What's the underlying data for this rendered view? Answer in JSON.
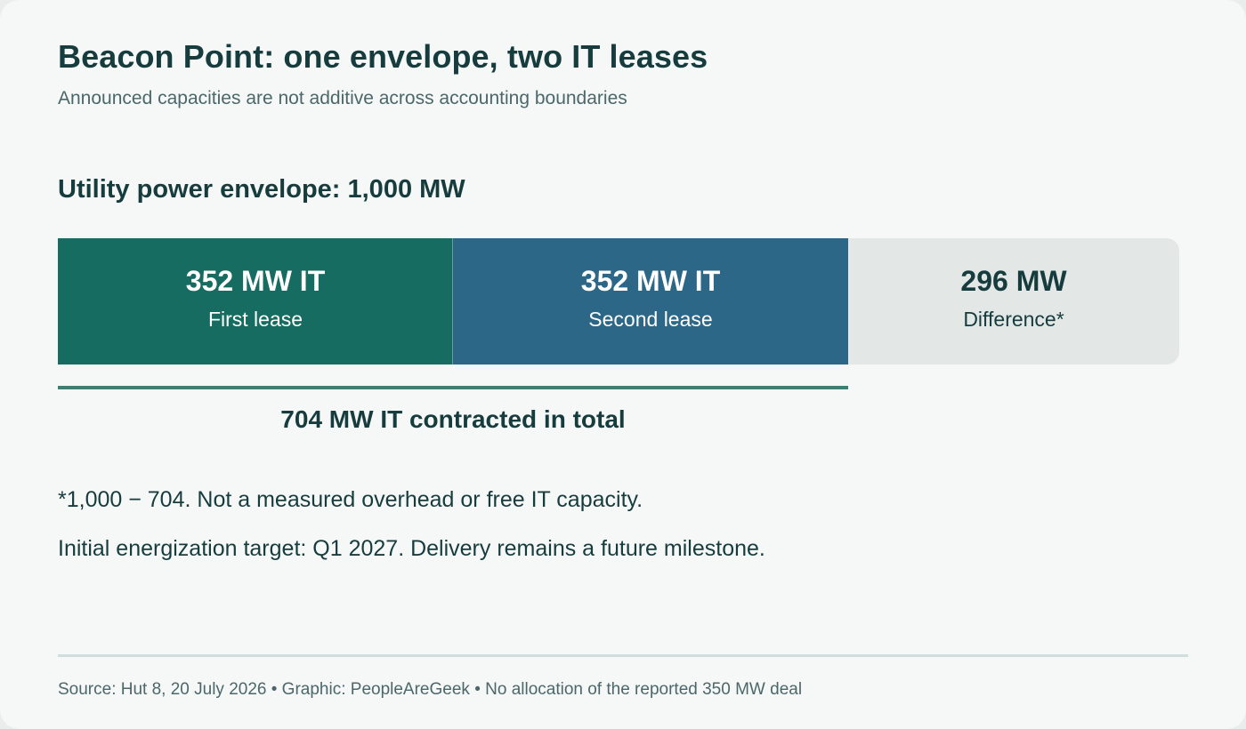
{
  "title": "Beacon Point: one envelope, two IT leases",
  "subtitle": "Announced capacities are not additive across accounting boundaries",
  "envelope_label": "Utility power envelope: 1,000 MW",
  "total_label": "704 MW IT contracted in total",
  "notes": [
    "*1,000 − 704. Not a measured overhead or free IT capacity.",
    "Initial energization target: Q1 2027. Delivery remains a future milestone."
  ],
  "source": "Source: Hut 8, 20 July 2026 • Graphic: PeopleAreGeek • No allocation of the reported 350 MW deal",
  "colors": {
    "first_lease": "#166c60",
    "second_lease": "#2c6787",
    "difference": "#e3e7e6",
    "bracket": "#3f7f73",
    "text_dark": "#173c3e"
  },
  "chart_data": {
    "type": "bar",
    "orientation": "horizontal-stacked",
    "total": 1000,
    "unit": "MW",
    "segments": [
      {
        "value": 352,
        "value_label": "352 MW IT",
        "label": "First lease",
        "color": "#166c60"
      },
      {
        "value": 352,
        "value_label": "352 MW IT",
        "label": "Second lease",
        "color": "#2c6787"
      },
      {
        "value": 296,
        "value_label": "296 MW",
        "label": "Difference*",
        "color": "#e3e7e6"
      }
    ],
    "bracket": {
      "from_segment": 0,
      "to_segment": 1,
      "value": 704
    }
  }
}
